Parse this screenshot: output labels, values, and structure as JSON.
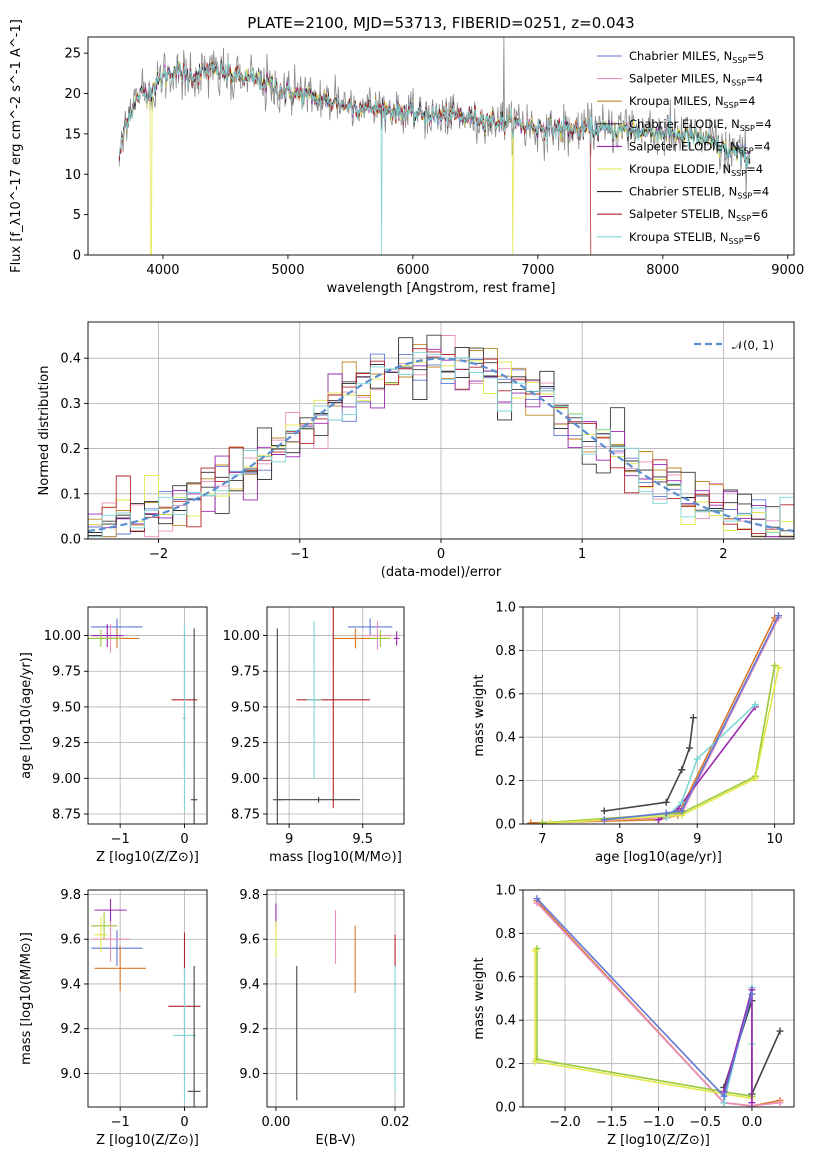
{
  "chart_data": [
    {
      "id": "spectrum",
      "type": "line",
      "title": "PLATE=2100, MJD=53713, FIBERID=0251, z=0.043",
      "xlabel": "wavelength [Angstrom, rest frame]",
      "ylabel": "Flux [f_λ10^-17 erg cm^-2 s^-1 A^-1]",
      "xlim": [
        3400,
        9050
      ],
      "ylim": [
        0,
        27
      ],
      "xticks": [
        4000,
        5000,
        6000,
        7000,
        8000,
        9000
      ],
      "yticks": [
        0,
        5,
        10,
        15,
        20,
        25
      ],
      "legend_position": "top-right",
      "spectrum_range": [
        3650,
        8700
      ],
      "profile": {
        "x": [
          3650,
          3700,
          3800,
          3900,
          4000,
          4100,
          4200,
          4400,
          4600,
          4800,
          5000,
          5200,
          5500,
          6000,
          6500,
          7000,
          7500,
          8000,
          8300,
          8500,
          8700
        ],
        "y": [
          12,
          16.5,
          19.5,
          20.5,
          22,
          23,
          22,
          23,
          22,
          21.5,
          20,
          19.5,
          18.5,
          17.5,
          17,
          15.8,
          15.5,
          15.2,
          14.5,
          13,
          12
        ]
      },
      "series": [
        {
          "name": "Chabrier MILES, N_SSP=5",
          "color": "#6277d6"
        },
        {
          "name": "Salpeter MILES, N_SSP=4",
          "color": "#e88fbf"
        },
        {
          "name": "Kroupa MILES, N_SSP=4",
          "color": "#c08a2a"
        },
        {
          "name": "Chabrier ELODIE, N_SSP=4",
          "color": "#3a3a3a"
        },
        {
          "name": "Salpeter ELODIE, N_SSP=4",
          "color": "#9b27b0"
        },
        {
          "name": "Kroupa ELODIE, N_SSP=4",
          "color": "#e1e84a"
        },
        {
          "name": "Chabrier STELIB, N_SSP=4",
          "color": "#2b2b2b"
        },
        {
          "name": "Salpeter STELIB, N_SSP=6",
          "color": "#b2242a"
        },
        {
          "name": "Kroupa STELIB, N_SSP=6",
          "color": "#7fd6d6"
        }
      ]
    },
    {
      "id": "residuals",
      "type": "histogram",
      "xlabel": "(data-model)/error",
      "ylabel": "Normed distribution",
      "xlim": [
        -2.5,
        2.5
      ],
      "ylim": [
        0,
        0.48
      ],
      "xticks": [
        -2,
        -1,
        0,
        1,
        2
      ],
      "yticks": [
        0.0,
        0.1,
        0.2,
        0.3,
        0.4
      ],
      "bin_width": 0.1,
      "grid": true,
      "reference": {
        "name": "𝒩(0, 1)",
        "color": "#5b8fd0",
        "legend_position": "top-right"
      },
      "colors": [
        "#6277d6",
        "#e88fbf",
        "#c08a2a",
        "#3a3a3a",
        "#9b27b0",
        "#e1e84a",
        "#2b2b2b",
        "#b2242a",
        "#7fd6d6"
      ]
    },
    {
      "id": "age-vs-z",
      "type": "errorbar",
      "xlabel": "Z [log10(Z/Z⊙)]",
      "ylabel": "age  [log10(age/yr)]",
      "xlim": [
        -1.5,
        0.35
      ],
      "ylim": [
        8.68,
        10.2
      ],
      "xticks": [
        -1,
        0
      ],
      "yticks": [
        8.75,
        9.0,
        9.25,
        9.5,
        9.75,
        10.0
      ],
      "grid": true,
      "points": [
        {
          "x": -1.05,
          "y": 10.06,
          "xe": 0.4,
          "ye": 0.06,
          "color": "#6277d6"
        },
        {
          "x": -1.15,
          "y": 9.98,
          "xe": 0.3,
          "ye": 0.1,
          "color": "#e88fbf"
        },
        {
          "x": -1.05,
          "y": 9.98,
          "xe": 0.35,
          "ye": 0.07,
          "color": "#dd7a2a"
        },
        {
          "x": -1.2,
          "y": 10.0,
          "xe": 0.25,
          "ye": 0.08,
          "color": "#9b27b0"
        },
        {
          "x": -1.3,
          "y": 9.98,
          "xe": 0.3,
          "ye": 0.06,
          "color": "#9ac93b"
        },
        {
          "x": 0.0,
          "y": 9.55,
          "xe": 0.2,
          "ye": 0.5,
          "color": "#b2242a"
        },
        {
          "x": 0.0,
          "y": 9.42,
          "xe": 0.03,
          "ye": 0.65,
          "color": "#7fd6d6"
        },
        {
          "x": 0.15,
          "y": 8.85,
          "xe": 0.05,
          "ye": 1.2,
          "color": "#444444"
        }
      ]
    },
    {
      "id": "age-vs-mass",
      "type": "errorbar",
      "xlabel": "mass [log10(M/M⊙)]",
      "ylabel": "",
      "xlim": [
        8.85,
        9.78
      ],
      "ylim": [
        8.68,
        10.2
      ],
      "xticks": [
        9.0,
        9.5
      ],
      "yticks": [
        8.75,
        9.0,
        9.25,
        9.5,
        9.75,
        10.0
      ],
      "grid": true,
      "points": [
        {
          "x": 9.55,
          "y": 10.06,
          "xe": 0.15,
          "ye": 0.06,
          "color": "#6277d6"
        },
        {
          "x": 9.6,
          "y": 10.0,
          "xe": 0.1,
          "ye": 0.1,
          "color": "#e88fbf"
        },
        {
          "x": 9.45,
          "y": 9.98,
          "xe": 0.15,
          "ye": 0.07,
          "color": "#dd7a2a"
        },
        {
          "x": 9.73,
          "y": 9.98,
          "xe": 0.02,
          "ye": 0.05,
          "color": "#9b27b0"
        },
        {
          "x": 9.62,
          "y": 9.98,
          "xe": 0.07,
          "ye": 0.06,
          "color": "#9ac93b"
        },
        {
          "x": 9.3,
          "y": 9.55,
          "xe": 0.25,
          "ye": 0.76,
          "color": "#b2242a"
        },
        {
          "x": 9.17,
          "y": 9.55,
          "xe": 0.05,
          "ye": 0.55,
          "color": "#7fd6d6"
        },
        {
          "x": 8.92,
          "y": 8.85,
          "xe": 0.03,
          "ye": 1.2,
          "color": "#444444"
        },
        {
          "x": 9.2,
          "y": 8.85,
          "xe": 0.28,
          "ye": 0.02,
          "color": "#444444"
        }
      ]
    },
    {
      "id": "weight-vs-age",
      "type": "line",
      "xlabel": "age  [log10(age/yr)]",
      "ylabel": "mass weight",
      "xlim": [
        6.75,
        10.25
      ],
      "ylim": [
        0,
        1.0
      ],
      "xticks": [
        7,
        8,
        9,
        10
      ],
      "yticks": [
        0.0,
        0.2,
        0.4,
        0.6,
        0.8,
        1.0
      ],
      "grid": true,
      "series": [
        {
          "color": "#dd7a2a",
          "x": [
            6.85,
            8.5,
            8.75,
            10.0
          ],
          "y": [
            0.005,
            0.02,
            0.04,
            0.95
          ]
        },
        {
          "color": "#e88fbf",
          "x": [
            7.0,
            8.6,
            8.8,
            10.05
          ],
          "y": [
            0.005,
            0.03,
            0.05,
            0.95
          ]
        },
        {
          "color": "#9b27b0",
          "x": [
            8.5,
            8.75,
            9.75
          ],
          "y": [
            0.02,
            0.07,
            0.54
          ]
        },
        {
          "color": "#7fd6d6",
          "x": [
            8.6,
            8.8,
            9.0,
            9.75
          ],
          "y": [
            0.03,
            0.1,
            0.3,
            0.55
          ]
        },
        {
          "color": "#444444",
          "x": [
            7.8,
            8.6,
            8.8,
            8.9,
            8.95
          ],
          "y": [
            0.06,
            0.1,
            0.25,
            0.35,
            0.49
          ]
        },
        {
          "color": "#9ac93b",
          "x": [
            7.0,
            8.8,
            9.75,
            10.0
          ],
          "y": [
            0.005,
            0.05,
            0.22,
            0.73
          ]
        },
        {
          "color": "#e1e84a",
          "x": [
            7.1,
            8.8,
            9.75,
            10.05
          ],
          "y": [
            0.005,
            0.04,
            0.21,
            0.72
          ]
        },
        {
          "color": "#6277d6",
          "x": [
            7.8,
            8.6,
            8.8,
            10.05
          ],
          "y": [
            0.02,
            0.05,
            0.06,
            0.96
          ]
        }
      ]
    },
    {
      "id": "mass-vs-z",
      "type": "errorbar",
      "xlabel": "Z [log10(Z/Z⊙)]",
      "ylabel": "mass [log10(M/M⊙)]",
      "xlim": [
        -1.5,
        0.35
      ],
      "ylim": [
        8.85,
        9.82
      ],
      "xticks": [
        -1,
        0
      ],
      "yticks": [
        9.0,
        9.2,
        9.4,
        9.6,
        9.8
      ],
      "grid": true,
      "points": [
        {
          "x": -1.05,
          "y": 9.56,
          "xe": 0.4,
          "ye": 0.08,
          "color": "#6277d6"
        },
        {
          "x": -1.15,
          "y": 9.6,
          "xe": 0.3,
          "ye": 0.1,
          "color": "#e88fbf"
        },
        {
          "x": -1.0,
          "y": 9.47,
          "xe": 0.4,
          "ye": 0.1,
          "color": "#dd7a2a"
        },
        {
          "x": -1.15,
          "y": 9.73,
          "xe": 0.25,
          "ye": 0.05,
          "color": "#9b27b0"
        },
        {
          "x": -1.25,
          "y": 9.66,
          "xe": 0.2,
          "ye": 0.06,
          "color": "#9ac93b"
        },
        {
          "x": -1.3,
          "y": 9.62,
          "xe": 0.1,
          "ye": 0.08,
          "color": "#e1e84a"
        },
        {
          "x": 0.0,
          "y": 9.3,
          "xe": 0.25,
          "ye": 0.33,
          "color": "#b2242a"
        },
        {
          "x": 0.0,
          "y": 9.17,
          "xe": 0.18,
          "ye": 0.3,
          "color": "#7fd6d6"
        },
        {
          "x": 0.15,
          "y": 8.92,
          "xe": 0.1,
          "ye": 0.56,
          "color": "#444444"
        }
      ]
    },
    {
      "id": "mass-vs-ebv",
      "type": "errorbar",
      "xlabel": "E(B-V)",
      "ylabel": "",
      "xlim": [
        -0.0015,
        0.0215
      ],
      "ylim": [
        8.85,
        9.82
      ],
      "xticks": [
        0.0,
        0.02
      ],
      "xtick_labels": [
        "0.00",
        "0.02"
      ],
      "yticks": [
        9.0,
        9.2,
        9.4,
        9.6,
        9.8
      ],
      "grid": true,
      "points": [
        {
          "x": 0.0,
          "y": 9.7,
          "xe": 0,
          "ye": 0.06,
          "color": "#9b27b0"
        },
        {
          "x": 0.0,
          "y": 9.6,
          "xe": 0,
          "ye": 0.08,
          "color": "#e1e84a"
        },
        {
          "x": 0.0035,
          "y": 9.18,
          "xe": 0,
          "ye": 0.3,
          "color": "#444444"
        },
        {
          "x": 0.01,
          "y": 9.61,
          "xe": 0,
          "ye": 0.12,
          "color": "#e88fbf"
        },
        {
          "x": 0.0133,
          "y": 9.51,
          "xe": 0,
          "ye": 0.15,
          "color": "#dd7a2a"
        },
        {
          "x": 0.02,
          "y": 9.55,
          "xe": 0,
          "ye": 0.07,
          "color": "#b2242a"
        },
        {
          "x": 0.02,
          "y": 9.2,
          "xe": 0,
          "ye": 0.28,
          "color": "#7fd6d6"
        }
      ]
    },
    {
      "id": "weight-vs-z",
      "type": "line",
      "xlabel": "Z [log10(Z/Z⊙)]",
      "ylabel": "mass weight",
      "xlim": [
        -2.45,
        0.45
      ],
      "ylim": [
        0,
        1.0
      ],
      "xticks": [
        -2.0,
        -1.5,
        -1.0,
        -0.5,
        0.0
      ],
      "xtick_labels": [
        "−2.0",
        "−1.5",
        "−1.0",
        "−0.5",
        "0.0"
      ],
      "yticks": [
        0.0,
        0.2,
        0.4,
        0.6,
        0.8,
        1.0
      ],
      "grid": true,
      "series": [
        {
          "color": "#dd7a2a",
          "x": [
            -2.3,
            -0.3,
            0.0,
            0.3
          ],
          "y": [
            0.95,
            0.02,
            0.005,
            0.03
          ]
        },
        {
          "color": "#e88fbf",
          "x": [
            -2.3,
            -0.3,
            0.0,
            0.3
          ],
          "y": [
            0.94,
            0.02,
            0.005,
            0.02
          ]
        },
        {
          "color": "#9ac93b",
          "x": [
            -2.3,
            -2.3,
            -0.3,
            0.0
          ],
          "y": [
            0.73,
            0.22,
            0.07,
            0.05
          ]
        },
        {
          "color": "#e1e84a",
          "x": [
            -2.32,
            -2.32,
            -0.3,
            0.0
          ],
          "y": [
            0.72,
            0.21,
            0.06,
            0.04
          ]
        },
        {
          "color": "#444444",
          "x": [
            -0.3,
            0.0,
            0.0,
            0.3
          ],
          "y": [
            0.09,
            0.49,
            0.06,
            0.35
          ]
        },
        {
          "color": "#7fd6d6",
          "x": [
            -0.3,
            0.0,
            0.0
          ],
          "y": [
            0.02,
            0.55,
            0.29
          ]
        },
        {
          "color": "#9b27b0",
          "x": [
            -0.3,
            0.0,
            0.0
          ],
          "y": [
            0.07,
            0.54,
            0.02
          ]
        },
        {
          "color": "#6277d6",
          "x": [
            -2.3,
            -0.3,
            0.0
          ],
          "y": [
            0.96,
            0.05,
            0.52
          ]
        }
      ]
    }
  ]
}
